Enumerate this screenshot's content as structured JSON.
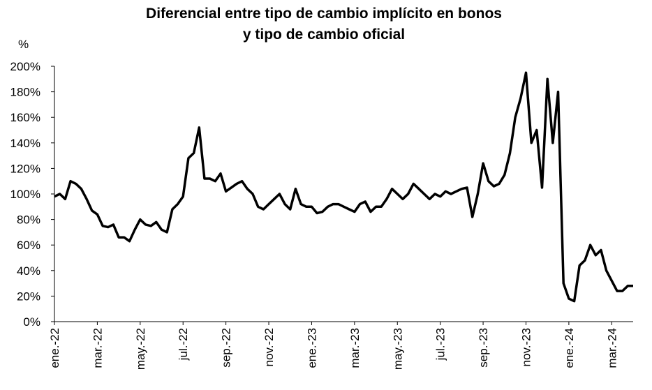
{
  "chart_data": {
    "type": "line",
    "title": "Diferencial entre tipo de cambio implícito en bonos",
    "subtitle": "y tipo de cambio oficial",
    "y_unit_label": "%",
    "xticks": [
      "ene.-22",
      "mar.-22",
      "may.-22",
      "jul.-22",
      "sep.-22",
      "nov.-22",
      "ene.-23",
      "mar.-23",
      "may.-23",
      "jul.-23",
      "sep.-23",
      "nov.-23",
      "ene.-24",
      "mar.-24"
    ],
    "series": [
      {
        "name": "Diferencial",
        "color": "#000000",
        "values": [
          98,
          100,
          96,
          110,
          108,
          104,
          96,
          87,
          84,
          75,
          74,
          76,
          66,
          66,
          63,
          72,
          80,
          76,
          75,
          78,
          72,
          70,
          88,
          92,
          98,
          128,
          132,
          152,
          112,
          112,
          110,
          116,
          102,
          105,
          108,
          110,
          104,
          100,
          90,
          88,
          92,
          96,
          100,
          92,
          88,
          104,
          92,
          90,
          90,
          85,
          86,
          90,
          92,
          92,
          90,
          88,
          86,
          92,
          94,
          86,
          90,
          90,
          96,
          104,
          100,
          96,
          100,
          108,
          104,
          100,
          96,
          100,
          98,
          102,
          100,
          102,
          104,
          105,
          82,
          100,
          124,
          110,
          106,
          108,
          115,
          132,
          160,
          175,
          195,
          140,
          150,
          105,
          190,
          140,
          180,
          30,
          18,
          16,
          44,
          48,
          60,
          52,
          56,
          40,
          32,
          24,
          24,
          28,
          28
        ]
      }
    ],
    "ylim": [
      0,
      200
    ],
    "yticks": [
      {
        "value": 0,
        "label": "0%"
      },
      {
        "value": 20,
        "label": "20%"
      },
      {
        "value": 40,
        "label": "40%"
      },
      {
        "value": 60,
        "label": "60%"
      },
      {
        "value": 80,
        "label": "80%"
      },
      {
        "value": 100,
        "label": "100%"
      },
      {
        "value": 120,
        "label": "120%"
      },
      {
        "value": 140,
        "label": "140%"
      },
      {
        "value": 160,
        "label": "160%"
      },
      {
        "value": 180,
        "label": "180%"
      },
      {
        "value": 200,
        "label": "200%"
      }
    ],
    "grid": false
  }
}
